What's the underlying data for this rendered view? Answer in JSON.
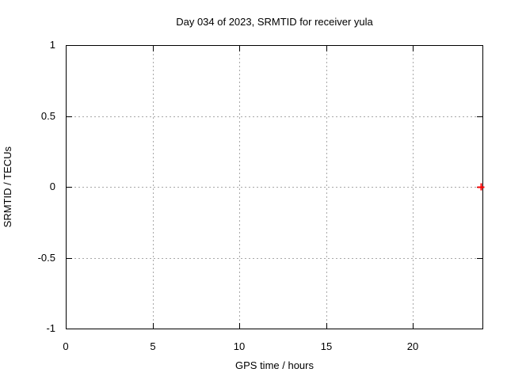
{
  "chart_data": {
    "type": "scatter",
    "title": "Day 034 of 2023, SRMTID for receiver yula",
    "xlabel": "GPS time / hours",
    "ylabel": "SRMTID / TECUs",
    "xlim": [
      0,
      24
    ],
    "ylim": [
      -1,
      1
    ],
    "xticks": [
      {
        "value": 0,
        "label": "0"
      },
      {
        "value": 5,
        "label": "5"
      },
      {
        "value": 10,
        "label": "10"
      },
      {
        "value": 15,
        "label": "15"
      },
      {
        "value": 20,
        "label": "20"
      }
    ],
    "yticks": [
      {
        "value": -1,
        "label": "-1"
      },
      {
        "value": -0.5,
        "label": "-0.5"
      },
      {
        "value": 0,
        "label": "0"
      },
      {
        "value": 0.5,
        "label": "0.5"
      },
      {
        "value": 1,
        "label": "1"
      }
    ],
    "grid": true,
    "legend": "none",
    "background_color": "#ffffff",
    "grid_color": "#a8a8a8",
    "axis_color": "#000000",
    "series": [
      {
        "name": "SRMTID",
        "style": "points",
        "marker": "plus",
        "color": "#ff0000",
        "points": [
          {
            "x": 23.91,
            "y": 0.0
          }
        ]
      }
    ]
  }
}
